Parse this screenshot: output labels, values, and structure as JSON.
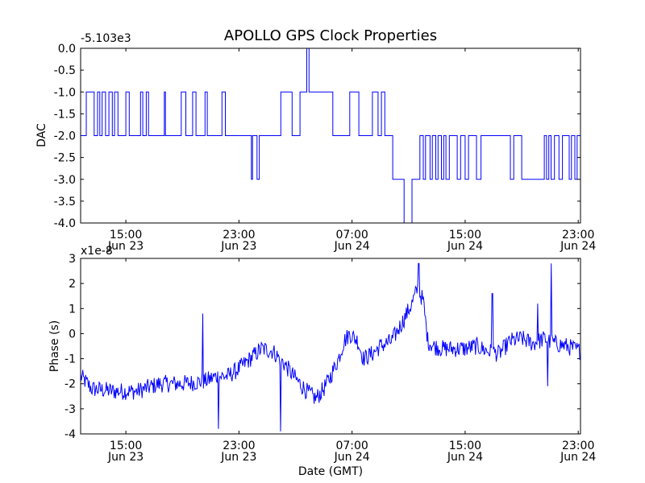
{
  "colors": {
    "line": "#0000ff",
    "axes": "#000000",
    "background": "#ffffff"
  },
  "chart_data": [
    {
      "type": "line",
      "title": "APOLLO GPS Clock Properties",
      "ylabel": "DAC",
      "offset_label": "-5.103e3",
      "xlim_hours": [
        0,
        44.2
      ],
      "ylim": [
        -4.0,
        0.0
      ],
      "yticks": [
        {
          "value": 0.0,
          "label": "0.0"
        },
        {
          "value": -0.5,
          "label": "-0.5"
        },
        {
          "value": -1.0,
          "label": "-1.0"
        },
        {
          "value": -1.5,
          "label": "-1.5"
        },
        {
          "value": -2.0,
          "label": "-2.0"
        },
        {
          "value": -2.5,
          "label": "-2.5"
        },
        {
          "value": -3.0,
          "label": "-3.0"
        },
        {
          "value": -3.5,
          "label": "-3.5"
        },
        {
          "value": -4.0,
          "label": "-4.0"
        }
      ],
      "xticks": [
        {
          "hours": 4,
          "time": "15:00",
          "date": "Jun 23"
        },
        {
          "hours": 14,
          "time": "23:00",
          "date": "Jun 23"
        },
        {
          "hours": 24,
          "time": "07:00",
          "date": "Jun 24"
        },
        {
          "hours": 34,
          "time": "15:00",
          "date": "Jun 24"
        },
        {
          "hours": 44,
          "time": "23:00",
          "date": "Jun 24"
        }
      ],
      "series": [
        {
          "name": "DAC",
          "steps": [
            [
              0.0,
              -2
            ],
            [
              0.5,
              -1
            ],
            [
              1.2,
              -2
            ],
            [
              1.5,
              -1
            ],
            [
              1.7,
              -2
            ],
            [
              1.9,
              -1
            ],
            [
              2.2,
              -2
            ],
            [
              2.5,
              -1
            ],
            [
              2.8,
              -2
            ],
            [
              3.0,
              -1
            ],
            [
              3.3,
              -2
            ],
            [
              4.0,
              -1
            ],
            [
              4.3,
              -2
            ],
            [
              5.3,
              -1
            ],
            [
              5.5,
              -2
            ],
            [
              5.8,
              -1
            ],
            [
              6.0,
              -2
            ],
            [
              7.4,
              -1
            ],
            [
              7.5,
              -2
            ],
            [
              8.9,
              -1
            ],
            [
              9.3,
              -2
            ],
            [
              9.9,
              -1
            ],
            [
              10.2,
              -2
            ],
            [
              11.0,
              -1
            ],
            [
              11.2,
              -2
            ],
            [
              12.5,
              -1
            ],
            [
              12.8,
              -2
            ],
            [
              15.1,
              -3
            ],
            [
              15.2,
              -2
            ],
            [
              15.6,
              -3
            ],
            [
              15.8,
              -2
            ],
            [
              17.7,
              -1
            ],
            [
              18.7,
              -2
            ],
            [
              19.4,
              -1
            ],
            [
              20.0,
              0
            ],
            [
              20.2,
              -1
            ],
            [
              22.3,
              -2
            ],
            [
              23.8,
              -1
            ],
            [
              24.6,
              -2
            ],
            [
              25.8,
              -1
            ],
            [
              26.3,
              -2
            ],
            [
              26.6,
              -1
            ],
            [
              26.9,
              -2
            ],
            [
              27.6,
              -3
            ],
            [
              28.6,
              -4
            ],
            [
              29.3,
              -3
            ],
            [
              30.0,
              -2
            ],
            [
              30.3,
              -3
            ],
            [
              30.5,
              -2
            ],
            [
              30.9,
              -3
            ],
            [
              31.1,
              -2
            ],
            [
              31.4,
              -3
            ],
            [
              31.6,
              -2
            ],
            [
              31.9,
              -3
            ],
            [
              32.1,
              -2
            ],
            [
              32.3,
              -3
            ],
            [
              32.6,
              -2
            ],
            [
              33.3,
              -3
            ],
            [
              33.6,
              -2
            ],
            [
              34.0,
              -3
            ],
            [
              34.3,
              -2
            ],
            [
              35.0,
              -3
            ],
            [
              35.4,
              -2
            ],
            [
              38.0,
              -3
            ],
            [
              38.3,
              -2
            ],
            [
              39.0,
              -3
            ],
            [
              41.0,
              -2
            ],
            [
              41.2,
              -3
            ],
            [
              41.4,
              -2
            ],
            [
              41.6,
              -3
            ],
            [
              41.9,
              -2
            ],
            [
              42.3,
              -3
            ],
            [
              42.6,
              -2
            ],
            [
              43.2,
              -3
            ],
            [
              43.4,
              -2
            ],
            [
              43.7,
              -3
            ],
            [
              43.9,
              -2
            ],
            [
              44.2,
              -2
            ]
          ]
        }
      ]
    },
    {
      "type": "line",
      "ylabel": "Phase (s)",
      "xlabel": "Date (GMT)",
      "offset_label": "x1e-8",
      "xlim_hours": [
        0,
        44.2
      ],
      "ylim": [
        -4,
        3
      ],
      "yticks": [
        {
          "value": 3,
          "label": "3"
        },
        {
          "value": 2,
          "label": "2"
        },
        {
          "value": 1,
          "label": "1"
        },
        {
          "value": 0,
          "label": "0"
        },
        {
          "value": -1,
          "label": "-1"
        },
        {
          "value": -2,
          "label": "-2"
        },
        {
          "value": -3,
          "label": "-3"
        },
        {
          "value": -4,
          "label": "-4"
        }
      ],
      "xticks": [
        {
          "hours": 4,
          "time": "15:00",
          "date": "Jun 23"
        },
        {
          "hours": 14,
          "time": "23:00",
          "date": "Jun 23"
        },
        {
          "hours": 24,
          "time": "07:00",
          "date": "Jun 24"
        },
        {
          "hours": 34,
          "time": "15:00",
          "date": "Jun 24"
        },
        {
          "hours": 44,
          "time": "23:00",
          "date": "Jun 24"
        }
      ],
      "series": [
        {
          "name": "Phase",
          "trend": [
            [
              0.0,
              -1.7
            ],
            [
              1.0,
              -2.2
            ],
            [
              3.0,
              -2.3
            ],
            [
              5.0,
              -2.3
            ],
            [
              7.0,
              -2.0
            ],
            [
              9.0,
              -2.0
            ],
            [
              11.0,
              -1.9
            ],
            [
              12.0,
              -1.7
            ],
            [
              13.0,
              -1.7
            ],
            [
              14.0,
              -1.4
            ],
            [
              15.0,
              -1.0
            ],
            [
              16.0,
              -0.6
            ],
            [
              17.0,
              -0.7
            ],
            [
              18.0,
              -1.2
            ],
            [
              19.0,
              -1.8
            ],
            [
              20.0,
              -2.3
            ],
            [
              20.8,
              -2.6
            ],
            [
              21.5,
              -2.2
            ],
            [
              22.0,
              -1.8
            ],
            [
              22.8,
              -1.0
            ],
            [
              23.3,
              -0.3
            ],
            [
              23.8,
              0.0
            ],
            [
              24.5,
              -0.3
            ],
            [
              25.0,
              -1.0
            ],
            [
              25.8,
              -0.8
            ],
            [
              26.5,
              -0.5
            ],
            [
              27.5,
              -0.3
            ],
            [
              28.5,
              0.5
            ],
            [
              29.3,
              1.2
            ],
            [
              29.8,
              1.8
            ],
            [
              30.3,
              1.3
            ],
            [
              30.7,
              -0.3
            ],
            [
              31.2,
              -0.5
            ],
            [
              32.0,
              -0.6
            ],
            [
              33.0,
              -0.6
            ],
            [
              34.0,
              -0.6
            ],
            [
              35.0,
              -0.5
            ],
            [
              36.0,
              -0.7
            ],
            [
              37.0,
              -0.8
            ],
            [
              38.0,
              -0.3
            ],
            [
              39.0,
              -0.2
            ],
            [
              40.0,
              -0.4
            ],
            [
              41.0,
              -0.2
            ],
            [
              42.0,
              -0.4
            ],
            [
              43.0,
              -0.5
            ],
            [
              44.2,
              -0.7
            ]
          ],
          "noise_amplitude": 0.35,
          "samples": 700,
          "spikes": [
            {
              "hours": 10.8,
              "value": 0.8
            },
            {
              "hours": 12.2,
              "value": -3.8
            },
            {
              "hours": 17.7,
              "value": -3.9
            },
            {
              "hours": 29.9,
              "value": 2.8
            },
            {
              "hours": 36.4,
              "value": 1.6
            },
            {
              "hours": 40.4,
              "value": 1.2
            },
            {
              "hours": 41.6,
              "value": 2.8
            },
            {
              "hours": 41.3,
              "value": -2.1
            }
          ]
        }
      ]
    }
  ]
}
